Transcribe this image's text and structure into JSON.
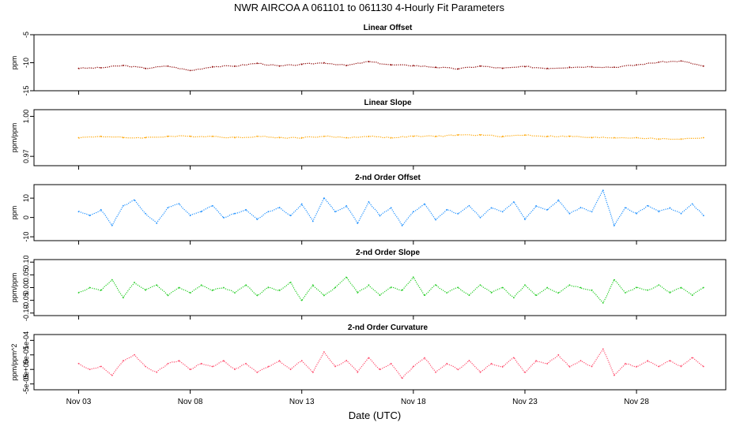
{
  "figure": {
    "title": "NWR   AIRCOA A   061101 to 061130   4-Hourly Fit Parameters",
    "xlabel": "Date (UTC)"
  },
  "chart_data": [
    {
      "type": "line",
      "title": "Linear Offset",
      "ylabel": "ppm",
      "ylim": [
        -15,
        -5
      ],
      "yticks": [
        "-5",
        "-10",
        "-15"
      ],
      "ytick_values": [
        -5,
        -10,
        -15
      ],
      "xlim": [
        "Nov 01",
        "Dec 02"
      ],
      "xticks": [
        "Nov 03",
        "Nov 08",
        "Nov 13",
        "Nov 18",
        "Nov 23",
        "Nov 28"
      ],
      "color": "#8b0000",
      "series": [
        {
          "x": [
            "Nov 03",
            "Nov 04",
            "Nov 05",
            "Nov 06",
            "Nov 07",
            "Nov 08",
            "Nov 09",
            "Nov 10",
            "Nov 11",
            "Nov 12",
            "Nov 13",
            "Nov 14",
            "Nov 15",
            "Nov 16",
            "Nov 17",
            "Nov 18",
            "Nov 19",
            "Nov 20",
            "Nov 21",
            "Nov 22",
            "Nov 23",
            "Nov 24",
            "Nov 25",
            "Nov 26",
            "Nov 27",
            "Nov 28",
            "Nov 29",
            "Nov 30",
            "Dec 01"
          ],
          "values": [
            -11.0,
            -10.9,
            -10.5,
            -11.0,
            -10.6,
            -11.4,
            -10.7,
            -10.6,
            -10.1,
            -10.6,
            -10.3,
            -10.0,
            -10.5,
            -9.8,
            -10.4,
            -10.5,
            -10.8,
            -11.1,
            -10.6,
            -11.0,
            -10.7,
            -11.0,
            -10.8,
            -10.7,
            -10.8,
            -10.4,
            -9.9,
            -9.7,
            -10.6
          ]
        }
      ]
    },
    {
      "type": "line",
      "title": "Linear Slope",
      "ylabel": "ppm/ppm",
      "ylim": [
        0.963,
        1.005
      ],
      "yticks": [
        "1.00",
        "0.97"
      ],
      "ytick_values": [
        1.0,
        0.97
      ],
      "xlim": [
        "Nov 01",
        "Dec 02"
      ],
      "xticks": [
        "Nov 03",
        "Nov 08",
        "Nov 13",
        "Nov 18",
        "Nov 23",
        "Nov 28"
      ],
      "color": "#ffa500",
      "series": [
        {
          "x": [
            "Nov 03",
            "Nov 04",
            "Nov 05",
            "Nov 06",
            "Nov 07",
            "Nov 08",
            "Nov 09",
            "Nov 10",
            "Nov 11",
            "Nov 12",
            "Nov 13",
            "Nov 14",
            "Nov 15",
            "Nov 16",
            "Nov 17",
            "Nov 18",
            "Nov 19",
            "Nov 20",
            "Nov 21",
            "Nov 22",
            "Nov 23",
            "Nov 24",
            "Nov 25",
            "Nov 26",
            "Nov 27",
            "Nov 28",
            "Nov 29",
            "Nov 30",
            "Dec 01"
          ],
          "values": [
            0.984,
            0.985,
            0.984,
            0.984,
            0.985,
            0.985,
            0.985,
            0.984,
            0.985,
            0.984,
            0.984,
            0.985,
            0.984,
            0.985,
            0.984,
            0.985,
            0.985,
            0.986,
            0.986,
            0.985,
            0.986,
            0.985,
            0.985,
            0.984,
            0.984,
            0.984,
            0.983,
            0.983,
            0.984
          ]
        }
      ]
    },
    {
      "type": "line",
      "title": "2-nd Order Offset",
      "ylabel": "ppm",
      "ylim": [
        -12,
        17
      ],
      "yticks": [
        "10",
        "0",
        "-10"
      ],
      "ytick_values": [
        10,
        0,
        -10
      ],
      "xlim": [
        "Nov 01",
        "Dec 02"
      ],
      "xticks": [
        "Nov 03",
        "Nov 08",
        "Nov 13",
        "Nov 18",
        "Nov 23",
        "Nov 28"
      ],
      "color": "#1e90ff",
      "series": [
        {
          "x": [
            "Nov 03",
            "Nov 03.5",
            "Nov 04",
            "Nov 04.5",
            "Nov 05",
            "Nov 05.5",
            "Nov 06",
            "Nov 06.5",
            "Nov 07",
            "Nov 07.5",
            "Nov 08",
            "Nov 08.5",
            "Nov 09",
            "Nov 09.5",
            "Nov 10",
            "Nov 10.5",
            "Nov 11",
            "Nov 11.5",
            "Nov 12",
            "Nov 12.5",
            "Nov 13",
            "Nov 13.5",
            "Nov 14",
            "Nov 14.5",
            "Nov 15",
            "Nov 15.5",
            "Nov 16",
            "Nov 16.5",
            "Nov 17",
            "Nov 17.5",
            "Nov 18",
            "Nov 18.5",
            "Nov 19",
            "Nov 19.5",
            "Nov 20",
            "Nov 20.5",
            "Nov 21",
            "Nov 21.5",
            "Nov 22",
            "Nov 22.5",
            "Nov 23",
            "Nov 23.5",
            "Nov 24",
            "Nov 24.5",
            "Nov 25",
            "Nov 25.5",
            "Nov 26",
            "Nov 26.5",
            "Nov 27",
            "Nov 27.5",
            "Nov 28",
            "Nov 28.5",
            "Nov 29",
            "Nov 29.5",
            "Nov 30",
            "Nov 30.5",
            "Dec 01"
          ],
          "values": [
            3,
            1,
            4,
            -4,
            6,
            9,
            2,
            -3,
            5,
            7,
            1,
            3,
            6,
            0,
            2,
            4,
            -1,
            3,
            5,
            1,
            7,
            -2,
            10,
            3,
            6,
            -3,
            8,
            1,
            5,
            -4,
            3,
            7,
            -1,
            4,
            2,
            6,
            0,
            5,
            3,
            8,
            -1,
            6,
            4,
            9,
            2,
            5,
            3,
            14,
            -4,
            5,
            2,
            6,
            3,
            5,
            2,
            7,
            1
          ]
        }
      ]
    },
    {
      "type": "line",
      "title": "2-nd Order Slope",
      "ylabel": "ppm/ppm",
      "ylim": [
        -0.11,
        0.11
      ],
      "yticks": [
        "0.10",
        "0.05",
        "0.00",
        "-0.05",
        "-0.10"
      ],
      "ytick_values": [
        0.1,
        0.05,
        0.0,
        -0.05,
        -0.1
      ],
      "xlim": [
        "Nov 01",
        "Dec 02"
      ],
      "xticks": [
        "Nov 03",
        "Nov 08",
        "Nov 13",
        "Nov 18",
        "Nov 23",
        "Nov 28"
      ],
      "color": "#22cc22",
      "series": [
        {
          "x": [
            "Nov 03",
            "Nov 03.5",
            "Nov 04",
            "Nov 04.5",
            "Nov 05",
            "Nov 05.5",
            "Nov 06",
            "Nov 06.5",
            "Nov 07",
            "Nov 07.5",
            "Nov 08",
            "Nov 08.5",
            "Nov 09",
            "Nov 09.5",
            "Nov 10",
            "Nov 10.5",
            "Nov 11",
            "Nov 11.5",
            "Nov 12",
            "Nov 12.5",
            "Nov 13",
            "Nov 13.5",
            "Nov 14",
            "Nov 14.5",
            "Nov 15",
            "Nov 15.5",
            "Nov 16",
            "Nov 16.5",
            "Nov 17",
            "Nov 17.5",
            "Nov 18",
            "Nov 18.5",
            "Nov 19",
            "Nov 19.5",
            "Nov 20",
            "Nov 20.5",
            "Nov 21",
            "Nov 21.5",
            "Nov 22",
            "Nov 22.5",
            "Nov 23",
            "Nov 23.5",
            "Nov 24",
            "Nov 24.5",
            "Nov 25",
            "Nov 25.5",
            "Nov 26",
            "Nov 26.5",
            "Nov 27",
            "Nov 27.5",
            "Nov 28",
            "Nov 28.5",
            "Nov 29",
            "Nov 29.5",
            "Nov 30",
            "Nov 30.5",
            "Dec 01"
          ],
          "values": [
            -0.02,
            0.0,
            -0.01,
            0.03,
            -0.04,
            0.02,
            -0.01,
            0.01,
            -0.03,
            0.0,
            -0.02,
            0.01,
            -0.01,
            0.0,
            -0.02,
            0.01,
            -0.03,
            0.0,
            -0.01,
            0.02,
            -0.05,
            0.01,
            -0.03,
            0.0,
            0.04,
            -0.02,
            0.01,
            -0.03,
            0.0,
            -0.01,
            0.04,
            -0.03,
            0.01,
            -0.02,
            0.0,
            -0.03,
            0.01,
            -0.02,
            0.0,
            -0.04,
            0.01,
            -0.03,
            0.0,
            -0.02,
            0.01,
            0.0,
            -0.01,
            -0.06,
            0.03,
            -0.02,
            0.0,
            -0.01,
            0.01,
            -0.02,
            0.0,
            -0.03,
            0.0
          ]
        }
      ]
    },
    {
      "type": "line",
      "title": "2-nd Order Curvature",
      "ylabel": "ppm/ppm^2",
      "ylim": [
        -7e-05,
        0.00012
      ],
      "yticks": [
        "1e-04",
        "5e-05",
        "0e+00",
        "-5e-05"
      ],
      "ytick_values": [
        0.0001,
        5e-05,
        0,
        -5e-05
      ],
      "xlim": [
        "Nov 01",
        "Dec 02"
      ],
      "xticks": [
        "Nov 03",
        "Nov 08",
        "Nov 13",
        "Nov 18",
        "Nov 23",
        "Nov 28"
      ],
      "color": "#ff4d6d",
      "series": [
        {
          "x": [
            "Nov 03",
            "Nov 03.5",
            "Nov 04",
            "Nov 04.5",
            "Nov 05",
            "Nov 05.5",
            "Nov 06",
            "Nov 06.5",
            "Nov 07",
            "Nov 07.5",
            "Nov 08",
            "Nov 08.5",
            "Nov 09",
            "Nov 09.5",
            "Nov 10",
            "Nov 10.5",
            "Nov 11",
            "Nov 11.5",
            "Nov 12",
            "Nov 12.5",
            "Nov 13",
            "Nov 13.5",
            "Nov 14",
            "Nov 14.5",
            "Nov 15",
            "Nov 15.5",
            "Nov 16",
            "Nov 16.5",
            "Nov 17",
            "Nov 17.5",
            "Nov 18",
            "Nov 18.5",
            "Nov 19",
            "Nov 19.5",
            "Nov 20",
            "Nov 20.5",
            "Nov 21",
            "Nov 21.5",
            "Nov 22",
            "Nov 22.5",
            "Nov 23",
            "Nov 23.5",
            "Nov 24",
            "Nov 24.5",
            "Nov 25",
            "Nov 25.5",
            "Nov 26",
            "Nov 26.5",
            "Nov 27",
            "Nov 27.5",
            "Nov 28",
            "Nov 28.5",
            "Nov 29",
            "Nov 29.5",
            "Nov 30",
            "Nov 30.5",
            "Dec 01"
          ],
          "values": [
            2e-05,
            0,
            1e-05,
            -2e-05,
            3e-05,
            5e-05,
            1e-05,
            -1e-05,
            2e-05,
            3e-05,
            0,
            2e-05,
            1e-05,
            3e-05,
            0,
            2e-05,
            -1e-05,
            1e-05,
            3e-05,
            0,
            3e-05,
            -1e-05,
            6e-05,
            1e-05,
            3e-05,
            -1e-05,
            4e-05,
            0,
            2e-05,
            -3e-05,
            1e-05,
            4e-05,
            -1e-05,
            2e-05,
            0,
            3e-05,
            -1e-05,
            2e-05,
            1e-05,
            4e-05,
            -1e-05,
            3e-05,
            2e-05,
            5e-05,
            1e-05,
            3e-05,
            1e-05,
            7e-05,
            -2e-05,
            2e-05,
            1e-05,
            3e-05,
            1e-05,
            3e-05,
            1e-05,
            4e-05,
            1e-05
          ]
        }
      ]
    }
  ]
}
